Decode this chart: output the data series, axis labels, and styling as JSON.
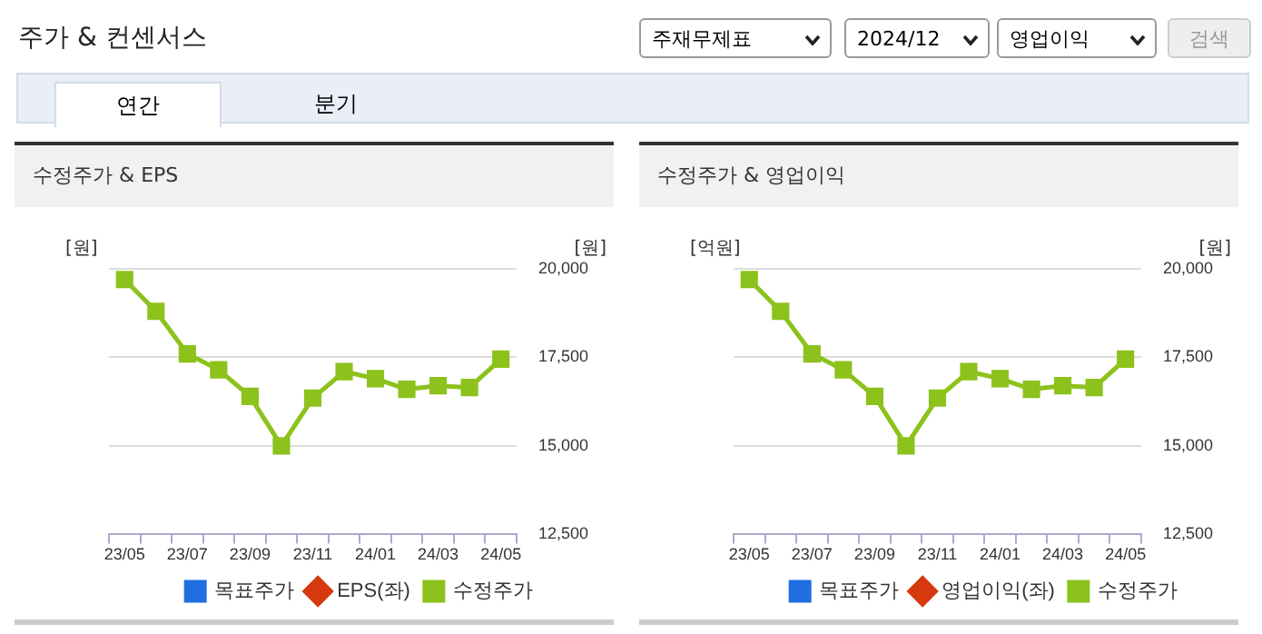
{
  "chart_data": [
    {
      "type": "other",
      "title": "주가 & 컨센서스",
      "annotations": [
        "주재무제표",
        "2024/12",
        "영업이익",
        "검색",
        "연간",
        "분기"
      ]
    },
    {
      "type": "line",
      "title": "수정주가 & EPS",
      "ylabel": "[원]",
      "y2label": "[원]",
      "categories": [
        "23/05",
        null,
        "23/07",
        null,
        "23/09",
        null,
        "23/11",
        null,
        "24/01",
        null,
        "24/03",
        null,
        "24/05"
      ],
      "series": [
        {
          "name": "목표주가",
          "color": "#1f6fe0",
          "marker": "square",
          "type": "bar",
          "values": [
            null,
            null,
            null,
            null,
            null,
            null,
            null,
            null,
            null,
            null,
            null,
            null,
            null
          ]
        },
        {
          "name": "EPS(좌)",
          "color": "#d7390e",
          "marker": "diamond",
          "values": [
            null,
            null,
            null,
            null,
            null,
            null,
            null,
            null,
            null,
            null,
            null,
            null,
            null
          ]
        },
        {
          "name": "수정주가",
          "color": "#8cc21b",
          "marker": "square",
          "axis": "y2",
          "values": [
            19700,
            18800,
            17600,
            17150,
            16400,
            15000,
            16350,
            17100,
            16900,
            16600,
            16700,
            16650,
            17450
          ]
        }
      ],
      "y2lim": [
        12500,
        20000
      ],
      "y2ticks": [
        {
          "value": 12500,
          "label": "12,500"
        },
        {
          "value": 15000,
          "label": "15,000"
        },
        {
          "value": 17500,
          "label": "17,500"
        },
        {
          "value": 20000,
          "label": "20,000"
        }
      ],
      "grid": "y",
      "legend": "bottom"
    },
    {
      "type": "line",
      "title": "수정주가 & 영업이익",
      "ylabel": "[억원]",
      "y2label": "[원]",
      "categories": [
        "23/05",
        null,
        "23/07",
        null,
        "23/09",
        null,
        "23/11",
        null,
        "24/01",
        null,
        "24/03",
        null,
        "24/05"
      ],
      "series": [
        {
          "name": "목표주가",
          "color": "#1f6fe0",
          "marker": "square",
          "type": "bar",
          "values": [
            null,
            null,
            null,
            null,
            null,
            null,
            null,
            null,
            null,
            null,
            null,
            null,
            null
          ]
        },
        {
          "name": "영업이익(좌)",
          "color": "#d7390e",
          "marker": "diamond",
          "values": [
            null,
            null,
            null,
            null,
            null,
            null,
            null,
            null,
            null,
            null,
            null,
            null,
            null
          ]
        },
        {
          "name": "수정주가",
          "color": "#8cc21b",
          "marker": "square",
          "axis": "y2",
          "values": [
            19700,
            18800,
            17600,
            17150,
            16400,
            15000,
            16350,
            17100,
            16900,
            16600,
            16700,
            16650,
            17450
          ]
        }
      ],
      "y2lim": [
        12500,
        20000
      ],
      "y2ticks": [
        {
          "value": 12500,
          "label": "12,500"
        },
        {
          "value": 15000,
          "label": "15,000"
        },
        {
          "value": 17500,
          "label": "17,500"
        },
        {
          "value": 20000,
          "label": "20,000"
        }
      ],
      "grid": "y",
      "legend": "bottom"
    }
  ]
}
